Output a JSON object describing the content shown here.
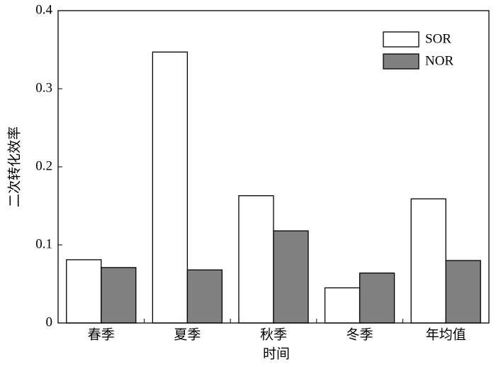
{
  "chart_data": {
    "type": "bar",
    "x_label": "时间",
    "y_label": "二次转化效率",
    "categories": [
      "春季",
      "夏季",
      "秋季",
      "冬季",
      "年均值"
    ],
    "series": [
      {
        "name": "SOR",
        "color": "#ffffff",
        "values": [
          0.081,
          0.347,
          0.163,
          0.045,
          0.159
        ]
      },
      {
        "name": "NOR",
        "color": "#808080",
        "values": [
          0.071,
          0.068,
          0.118,
          0.064,
          0.08
        ]
      }
    ],
    "ylim": [
      0,
      0.4
    ],
    "yticks": [
      0,
      0.1,
      0.2,
      0.3,
      0.4
    ],
    "legend": "upper-right"
  }
}
